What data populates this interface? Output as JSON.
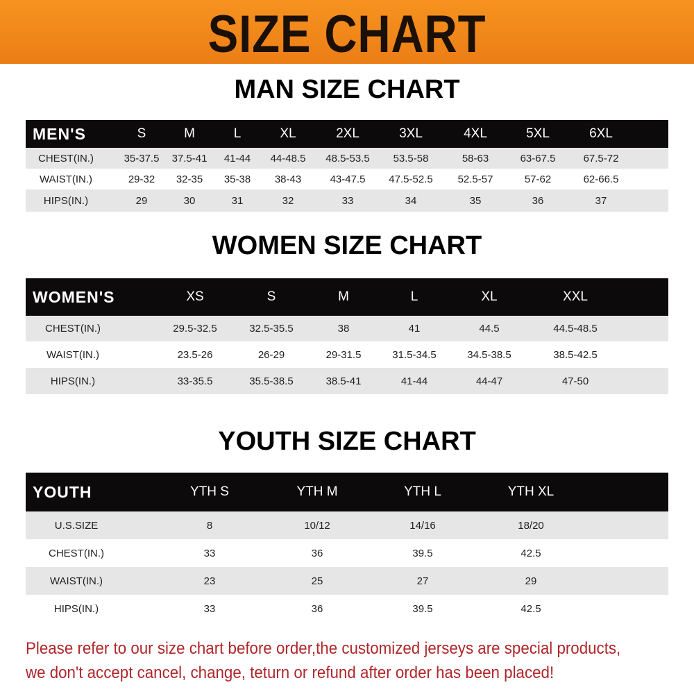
{
  "header": {
    "title": "SIZE CHART",
    "color": "#f08a1c"
  },
  "men": {
    "title": "MAN SIZE CHART",
    "label": "MEN'S",
    "sizes": [
      "S",
      "M",
      "L",
      "XL",
      "2XL",
      "3XL",
      "4XL",
      "5XL",
      "6XL"
    ],
    "rows": [
      {
        "label": "CHEST(IN.)",
        "values": [
          "35-37.5",
          "37.5-41",
          "41-44",
          "44-48.5",
          "48.5-53.5",
          "53.5-58",
          "58-63",
          "63-67.5",
          "67.5-72"
        ]
      },
      {
        "label": "WAIST(IN.)",
        "values": [
          "29-32",
          "32-35",
          "35-38",
          "38-43",
          "43-47.5",
          "47.5-52.5",
          "52.5-57",
          "57-62",
          "62-66.5"
        ]
      },
      {
        "label": "HIPS(IN.)",
        "values": [
          "29",
          "30",
          "31",
          "32",
          "33",
          "34",
          "35",
          "36",
          "37"
        ]
      }
    ]
  },
  "women": {
    "title": "WOMEN SIZE CHART",
    "label": "WOMEN'S",
    "sizes": [
      "XS",
      "S",
      "M",
      "L",
      "XL",
      "XXL"
    ],
    "rows": [
      {
        "label": "CHEST(IN.)",
        "values": [
          "29.5-32.5",
          "32.5-35.5",
          "38",
          "41",
          "44.5",
          "44.5-48.5"
        ]
      },
      {
        "label": "WAIST(IN.)",
        "values": [
          "23.5-26",
          "26-29",
          "29-31.5",
          "31.5-34.5",
          "34.5-38.5",
          "38.5-42.5"
        ]
      },
      {
        "label": "HIPS(IN.)",
        "values": [
          "33-35.5",
          "35.5-38.5",
          "38.5-41",
          "41-44",
          "44-47",
          "47-50"
        ]
      }
    ]
  },
  "youth": {
    "title": "YOUTH SIZE CHART",
    "label": "YOUTH",
    "sizes": [
      "YTH S",
      "YTH M",
      "YTH L",
      "YTH XL"
    ],
    "rows": [
      {
        "label": "U.S.SIZE",
        "values": [
          "8",
          "10/12",
          "14/16",
          "18/20"
        ]
      },
      {
        "label": "CHEST(IN.)",
        "values": [
          "33",
          "36",
          "39.5",
          "42.5"
        ]
      },
      {
        "label": "WAIST(IN.)",
        "values": [
          "23",
          "25",
          "27",
          "29"
        ]
      },
      {
        "label": "HIPS(IN.)",
        "values": [
          "33",
          "36",
          "39.5",
          "42.5"
        ]
      }
    ]
  },
  "footer": {
    "line1": "Please refer to our size chart before order,the customized jerseys are special products,",
    "line2": "we don't accept cancel, change, teturn or refund after order has been placed!",
    "color": "#b0262a"
  }
}
